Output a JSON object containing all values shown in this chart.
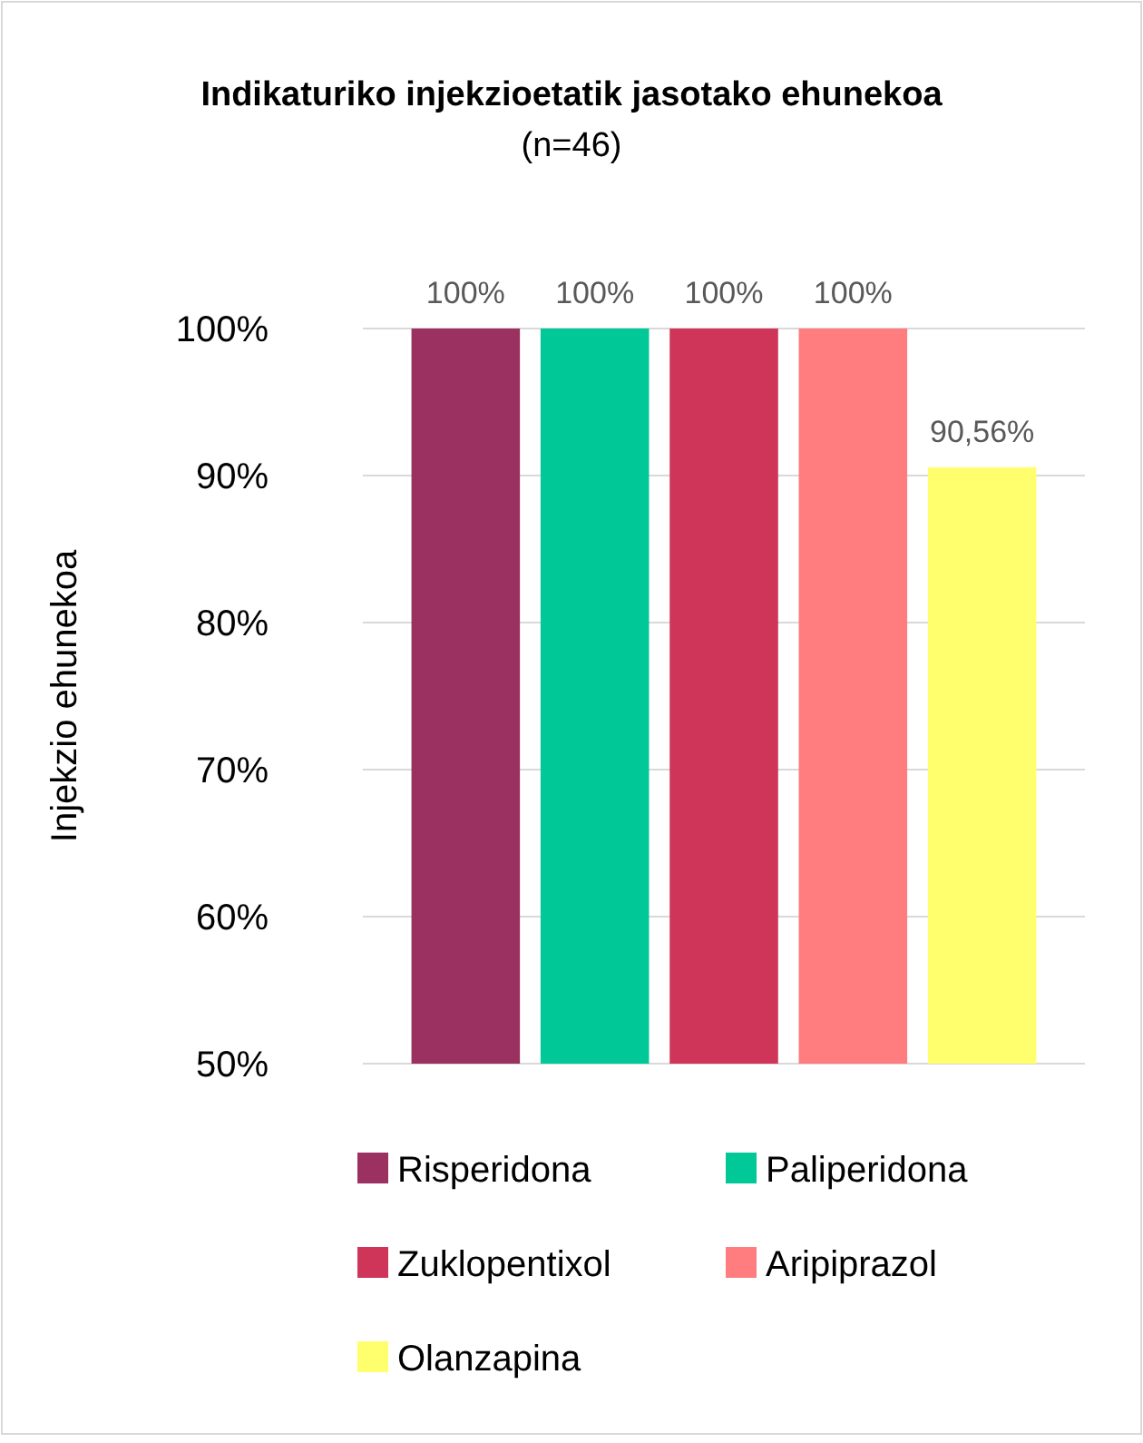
{
  "chart_data": {
    "type": "bar",
    "title": "Indikaturiko injekzioetatik jasotako ehunekoa",
    "subtitle": "(n=46)",
    "ylabel": "Injekzio ehunekoa",
    "categories": [
      null
    ],
    "series": [
      {
        "name": "Risperidona",
        "color": "#9b3160",
        "values": [
          100
        ],
        "value_labels": [
          "100%"
        ]
      },
      {
        "name": "Paliperidona",
        "color": "#00c896",
        "values": [
          100
        ],
        "value_labels": [
          "100%"
        ]
      },
      {
        "name": "Zuklopentixol",
        "color": "#cf3558",
        "values": [
          100
        ],
        "value_labels": [
          "100%"
        ]
      },
      {
        "name": "Aripiprazol",
        "color": "#ff7c7f",
        "values": [
          100
        ],
        "value_labels": [
          "100%"
        ]
      },
      {
        "name": "Olanzapina",
        "color": "#ffff6e",
        "values": [
          90.56
        ],
        "value_labels": [
          "90,56%"
        ]
      }
    ],
    "ylim": [
      50,
      100
    ],
    "yticks": [
      {
        "value": 50,
        "label": "50%"
      },
      {
        "value": 60,
        "label": "60%"
      },
      {
        "value": 70,
        "label": "70%"
      },
      {
        "value": 80,
        "label": "80%"
      },
      {
        "value": 90,
        "label": "90%"
      },
      {
        "value": 100,
        "label": "100%"
      }
    ],
    "grid": "y",
    "legend": "bottom"
  }
}
